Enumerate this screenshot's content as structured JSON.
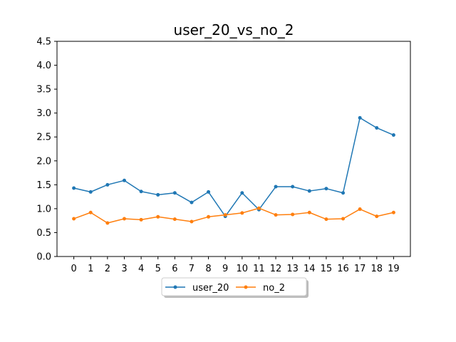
{
  "chart_data": {
    "type": "line",
    "title": "user_20_vs_no_2",
    "xlabel": "",
    "ylabel": "",
    "x": [
      0,
      1,
      2,
      3,
      4,
      5,
      6,
      7,
      8,
      9,
      10,
      11,
      12,
      13,
      14,
      15,
      16,
      17,
      18,
      19
    ],
    "xlim": [
      -1.0,
      20.0
    ],
    "ylim": [
      0.0,
      4.5
    ],
    "yticks": [
      0.0,
      0.5,
      1.0,
      1.5,
      2.0,
      2.5,
      3.0,
      3.5,
      4.0,
      4.5
    ],
    "ytick_labels": [
      "0.0",
      "0.5",
      "1.0",
      "1.5",
      "2.0",
      "2.5",
      "3.0",
      "3.5",
      "4.0",
      "4.5"
    ],
    "grid": false,
    "legend_placement": "bottom-center",
    "series": [
      {
        "name": "user_20",
        "color": "#1f77b4",
        "values": [
          1.43,
          1.35,
          1.5,
          1.59,
          1.36,
          1.29,
          1.33,
          1.13,
          1.35,
          0.84,
          1.33,
          0.98,
          1.46,
          1.46,
          1.37,
          1.42,
          1.33,
          2.9,
          2.69,
          2.54
        ]
      },
      {
        "name": "no_2",
        "color": "#ff7f0e",
        "values": [
          0.79,
          0.92,
          0.7,
          0.79,
          0.77,
          0.83,
          0.78,
          0.73,
          0.83,
          0.87,
          0.91,
          1.01,
          0.87,
          0.88,
          0.92,
          0.78,
          0.79,
          0.99,
          0.84,
          0.92
        ]
      }
    ]
  }
}
